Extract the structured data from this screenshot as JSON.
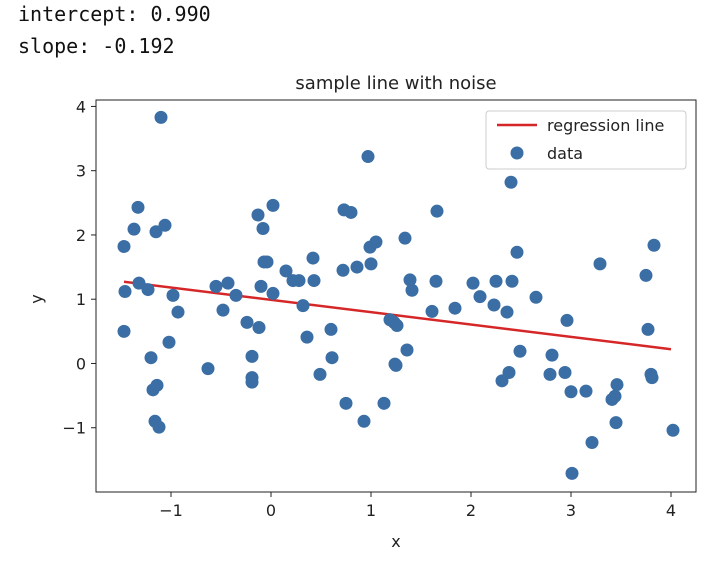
{
  "output": {
    "intercept_text": "intercept: 0.990",
    "slope_text": "slope: -0.192"
  },
  "chart_data": {
    "type": "scatter",
    "title": "sample line with noise",
    "xlabel": "x",
    "ylabel": "y",
    "xlim": [
      -1.75,
      4.25
    ],
    "ylim": [
      -2.0,
      4.1
    ],
    "xticks": [
      -1,
      0,
      1,
      2,
      3,
      4
    ],
    "yticks": [
      -1,
      0,
      1,
      2,
      3,
      4
    ],
    "ytick_labels": [
      "−1",
      "0",
      "1",
      "2",
      "3",
      "4"
    ],
    "grid": false,
    "legend_position": "top-right",
    "regression_line": {
      "name": "regression line",
      "intercept": 0.99,
      "slope": -0.192,
      "x_range": [
        -1.47,
        4.0
      ],
      "color": "#d62728"
    },
    "points_series": {
      "name": "data",
      "color": "#3a6ea5",
      "points": [
        [
          -1.47,
          1.82
        ],
        [
          -1.46,
          1.12
        ],
        [
          -1.47,
          0.5
        ],
        [
          -1.37,
          2.09
        ],
        [
          -1.33,
          2.43
        ],
        [
          -1.32,
          1.25
        ],
        [
          -1.23,
          1.15
        ],
        [
          -1.2,
          0.09
        ],
        [
          -1.18,
          -0.41
        ],
        [
          -1.14,
          -0.34
        ],
        [
          -1.16,
          -0.9
        ],
        [
          -1.15,
          2.05
        ],
        [
          -1.1,
          3.83
        ],
        [
          -1.12,
          -0.99
        ],
        [
          -1.06,
          2.15
        ],
        [
          -1.02,
          0.33
        ],
        [
          -0.98,
          1.06
        ],
        [
          -0.93,
          0.8
        ],
        [
          -0.63,
          -0.08
        ],
        [
          -0.55,
          1.2
        ],
        [
          -0.48,
          0.83
        ],
        [
          -0.43,
          1.25
        ],
        [
          -0.35,
          1.06
        ],
        [
          -0.24,
          0.64
        ],
        [
          -0.19,
          0.11
        ],
        [
          -0.19,
          -0.22
        ],
        [
          -0.19,
          -0.29
        ],
        [
          -0.13,
          2.31
        ],
        [
          -0.12,
          0.56
        ],
        [
          -0.1,
          1.2
        ],
        [
          -0.08,
          2.1
        ],
        [
          -0.07,
          1.58
        ],
        [
          -0.04,
          1.58
        ],
        [
          0.02,
          2.46
        ],
        [
          0.02,
          1.09
        ],
        [
          0.15,
          1.44
        ],
        [
          0.22,
          1.29
        ],
        [
          0.28,
          1.29
        ],
        [
          0.32,
          0.9
        ],
        [
          0.36,
          0.41
        ],
        [
          0.42,
          1.64
        ],
        [
          0.43,
          1.29
        ],
        [
          0.49,
          -0.17
        ],
        [
          0.6,
          0.53
        ],
        [
          0.61,
          0.09
        ],
        [
          0.72,
          1.45
        ],
        [
          0.73,
          2.39
        ],
        [
          0.75,
          -0.62
        ],
        [
          0.8,
          2.35
        ],
        [
          0.86,
          1.5
        ],
        [
          0.93,
          -0.9
        ],
        [
          0.97,
          3.22
        ],
        [
          0.99,
          1.81
        ],
        [
          1.0,
          1.55
        ],
        [
          1.05,
          1.89
        ],
        [
          1.13,
          -0.62
        ],
        [
          1.19,
          0.68
        ],
        [
          1.23,
          0.64
        ],
        [
          1.24,
          -0.01
        ],
        [
          1.25,
          -0.03
        ],
        [
          1.26,
          0.59
        ],
        [
          1.34,
          1.95
        ],
        [
          1.36,
          0.21
        ],
        [
          1.39,
          1.3
        ],
        [
          1.41,
          1.14
        ],
        [
          1.61,
          0.81
        ],
        [
          1.65,
          1.28
        ],
        [
          1.66,
          2.37
        ],
        [
          1.84,
          0.86
        ],
        [
          2.02,
          1.25
        ],
        [
          2.09,
          1.04
        ],
        [
          2.23,
          0.91
        ],
        [
          2.25,
          1.28
        ],
        [
          2.31,
          -0.27
        ],
        [
          2.36,
          0.8
        ],
        [
          2.38,
          -0.14
        ],
        [
          2.4,
          2.82
        ],
        [
          2.41,
          1.28
        ],
        [
          2.46,
          1.73
        ],
        [
          2.49,
          0.19
        ],
        [
          2.65,
          1.03
        ],
        [
          2.79,
          -0.17
        ],
        [
          2.81,
          0.13
        ],
        [
          2.94,
          -0.14
        ],
        [
          2.96,
          0.67
        ],
        [
          3.0,
          -0.44
        ],
        [
          3.01,
          -1.71
        ],
        [
          3.15,
          -0.43
        ],
        [
          3.21,
          -1.23
        ],
        [
          3.29,
          1.55
        ],
        [
          3.41,
          -0.56
        ],
        [
          3.44,
          -0.51
        ],
        [
          3.45,
          -0.92
        ],
        [
          3.46,
          -0.33
        ],
        [
          3.75,
          1.37
        ],
        [
          3.77,
          0.53
        ],
        [
          3.8,
          -0.17
        ],
        [
          3.81,
          -0.22
        ],
        [
          3.83,
          1.84
        ],
        [
          4.02,
          -1.04
        ]
      ]
    }
  }
}
